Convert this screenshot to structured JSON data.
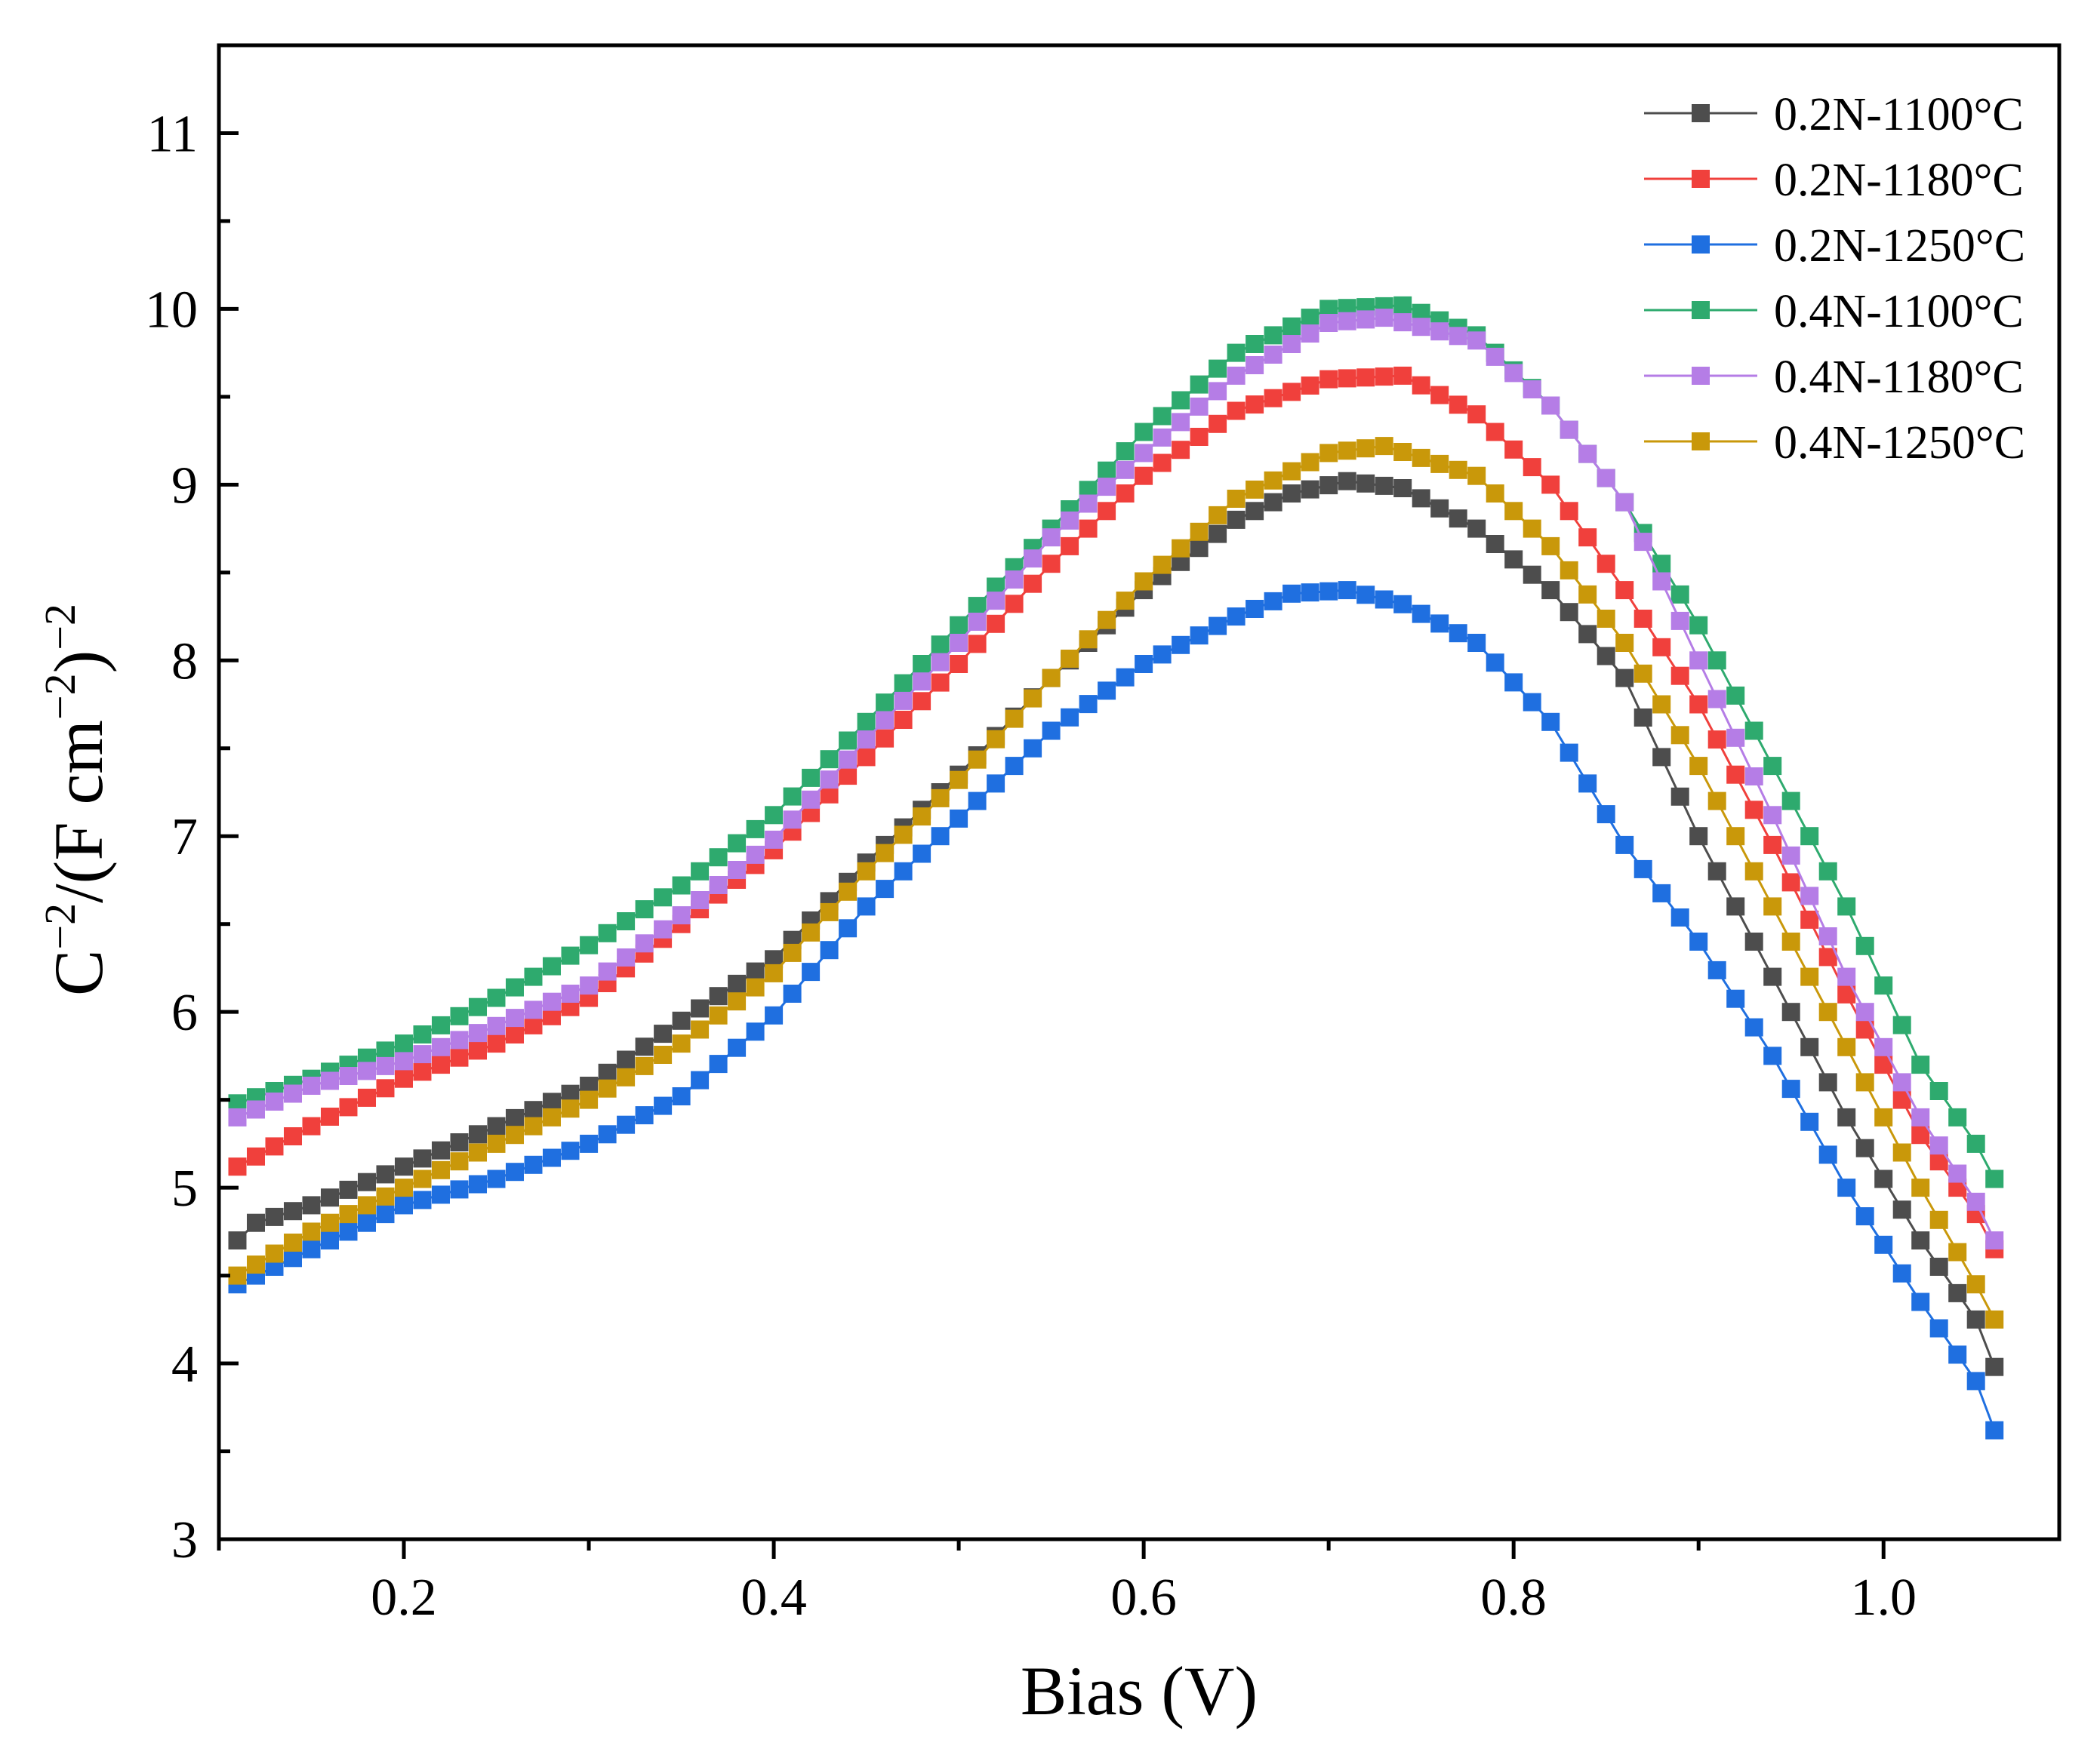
{
  "chart_data": {
    "type": "line",
    "title": "",
    "xlabel": "Bias (V)",
    "ylabel_parts": {
      "base": "C",
      "exp1": "−2",
      "mid1": "/(F cm",
      "exp2": "−2",
      "mid2": ")",
      "exp3": "−2"
    },
    "xlim": [
      0.1,
      1.095
    ],
    "ylim": [
      3,
      11.5
    ],
    "xticks": [
      0.2,
      0.4,
      0.6,
      0.8,
      1.0
    ],
    "xtick_labels": [
      "0.2",
      "0.4",
      "0.6",
      "0.8",
      "1.0"
    ],
    "yticks": [
      3,
      4,
      5,
      6,
      7,
      8,
      9,
      10,
      11
    ],
    "ytick_labels": [
      "3",
      "4",
      "5",
      "6",
      "7",
      "8",
      "9",
      "10",
      "11"
    ],
    "grid": false,
    "legend_position": "top-right",
    "marker": "square",
    "x_range_points": {
      "start": 0.11,
      "end": 1.06,
      "step": 0.01
    },
    "series": [
      {
        "name": "0.2N-1100°C",
        "color": "#4d4d4d",
        "anchors": [
          [
            0.11,
            4.7
          ],
          [
            0.12,
            4.8
          ],
          [
            0.15,
            4.9
          ],
          [
            0.2,
            5.12
          ],
          [
            0.25,
            5.35
          ],
          [
            0.3,
            5.58
          ],
          [
            0.35,
            5.95
          ],
          [
            0.4,
            6.3
          ],
          [
            0.45,
            6.85
          ],
          [
            0.5,
            7.35
          ],
          [
            0.55,
            7.9
          ],
          [
            0.6,
            8.4
          ],
          [
            0.65,
            8.8
          ],
          [
            0.68,
            8.95
          ],
          [
            0.71,
            9.02
          ],
          [
            0.74,
            8.98
          ],
          [
            0.78,
            8.75
          ],
          [
            0.82,
            8.4
          ],
          [
            0.86,
            7.9
          ],
          [
            0.9,
            7.0
          ],
          [
            0.94,
            6.2
          ],
          [
            0.98,
            5.4
          ],
          [
            1.02,
            4.7
          ],
          [
            1.05,
            4.25
          ],
          [
            1.06,
            3.98
          ]
        ]
      },
      {
        "name": "0.2N-1180°C",
        "color": "#f0403c",
        "anchors": [
          [
            0.11,
            5.12
          ],
          [
            0.15,
            5.35
          ],
          [
            0.2,
            5.62
          ],
          [
            0.25,
            5.82
          ],
          [
            0.3,
            6.08
          ],
          [
            0.35,
            6.5
          ],
          [
            0.4,
            6.92
          ],
          [
            0.45,
            7.45
          ],
          [
            0.5,
            7.98
          ],
          [
            0.55,
            8.55
          ],
          [
            0.6,
            9.05
          ],
          [
            0.65,
            9.42
          ],
          [
            0.7,
            9.6
          ],
          [
            0.74,
            9.62
          ],
          [
            0.78,
            9.4
          ],
          [
            0.82,
            9.0
          ],
          [
            0.86,
            8.4
          ],
          [
            0.9,
            7.75
          ],
          [
            0.94,
            6.95
          ],
          [
            0.98,
            6.1
          ],
          [
            1.02,
            5.3
          ],
          [
            1.05,
            4.85
          ],
          [
            1.06,
            4.65
          ]
        ]
      },
      {
        "name": "0.2N-1250°C",
        "color": "#1f6fe0",
        "anchors": [
          [
            0.11,
            4.45
          ],
          [
            0.15,
            4.65
          ],
          [
            0.2,
            4.9
          ],
          [
            0.25,
            5.05
          ],
          [
            0.3,
            5.25
          ],
          [
            0.35,
            5.52
          ],
          [
            0.4,
            5.98
          ],
          [
            0.45,
            6.6
          ],
          [
            0.5,
            7.1
          ],
          [
            0.55,
            7.6
          ],
          [
            0.6,
            7.98
          ],
          [
            0.65,
            8.25
          ],
          [
            0.68,
            8.38
          ],
          [
            0.71,
            8.4
          ],
          [
            0.74,
            8.32
          ],
          [
            0.78,
            8.1
          ],
          [
            0.82,
            7.65
          ],
          [
            0.86,
            6.95
          ],
          [
            0.9,
            6.4
          ],
          [
            0.94,
            5.75
          ],
          [
            0.98,
            5.0
          ],
          [
            1.02,
            4.35
          ],
          [
            1.05,
            3.9
          ],
          [
            1.06,
            3.62
          ]
        ]
      },
      {
        "name": "0.4N-1100°C",
        "color": "#2eaa6e",
        "anchors": [
          [
            0.11,
            5.48
          ],
          [
            0.15,
            5.62
          ],
          [
            0.2,
            5.82
          ],
          [
            0.25,
            6.08
          ],
          [
            0.3,
            6.38
          ],
          [
            0.35,
            6.72
          ],
          [
            0.4,
            7.12
          ],
          [
            0.45,
            7.65
          ],
          [
            0.5,
            8.2
          ],
          [
            0.55,
            8.75
          ],
          [
            0.6,
            9.3
          ],
          [
            0.65,
            9.75
          ],
          [
            0.7,
            10.0
          ],
          [
            0.74,
            10.02
          ],
          [
            0.78,
            9.85
          ],
          [
            0.82,
            9.45
          ],
          [
            0.86,
            8.9
          ],
          [
            0.9,
            8.2
          ],
          [
            0.94,
            7.4
          ],
          [
            0.98,
            6.6
          ],
          [
            1.02,
            5.7
          ],
          [
            1.05,
            5.25
          ],
          [
            1.06,
            5.05
          ]
        ]
      },
      {
        "name": "0.4N-1180°C",
        "color": "#b57de6",
        "anchors": [
          [
            0.11,
            5.4
          ],
          [
            0.15,
            5.58
          ],
          [
            0.2,
            5.72
          ],
          [
            0.25,
            5.92
          ],
          [
            0.3,
            6.15
          ],
          [
            0.35,
            6.55
          ],
          [
            0.4,
            6.98
          ],
          [
            0.45,
            7.55
          ],
          [
            0.5,
            8.1
          ],
          [
            0.55,
            8.7
          ],
          [
            0.6,
            9.18
          ],
          [
            0.65,
            9.62
          ],
          [
            0.7,
            9.92
          ],
          [
            0.73,
            9.95
          ],
          [
            0.78,
            9.82
          ],
          [
            0.82,
            9.45
          ],
          [
            0.86,
            8.9
          ],
          [
            0.9,
            8.0
          ],
          [
            0.94,
            7.12
          ],
          [
            0.98,
            6.2
          ],
          [
            1.02,
            5.4
          ],
          [
            1.05,
            4.92
          ],
          [
            1.06,
            4.7
          ]
        ]
      },
      {
        "name": "0.4N-1250°C",
        "color": "#c9980a",
        "anchors": [
          [
            0.11,
            4.5
          ],
          [
            0.15,
            4.75
          ],
          [
            0.2,
            5.0
          ],
          [
            0.25,
            5.25
          ],
          [
            0.3,
            5.5
          ],
          [
            0.35,
            5.82
          ],
          [
            0.4,
            6.22
          ],
          [
            0.45,
            6.8
          ],
          [
            0.5,
            7.32
          ],
          [
            0.55,
            7.9
          ],
          [
            0.6,
            8.45
          ],
          [
            0.65,
            8.92
          ],
          [
            0.7,
            9.18
          ],
          [
            0.73,
            9.22
          ],
          [
            0.78,
            9.05
          ],
          [
            0.82,
            8.65
          ],
          [
            0.86,
            8.1
          ],
          [
            0.9,
            7.4
          ],
          [
            0.94,
            6.6
          ],
          [
            0.98,
            5.8
          ],
          [
            1.02,
            5.0
          ],
          [
            1.05,
            4.45
          ],
          [
            1.06,
            4.25
          ]
        ]
      }
    ]
  }
}
